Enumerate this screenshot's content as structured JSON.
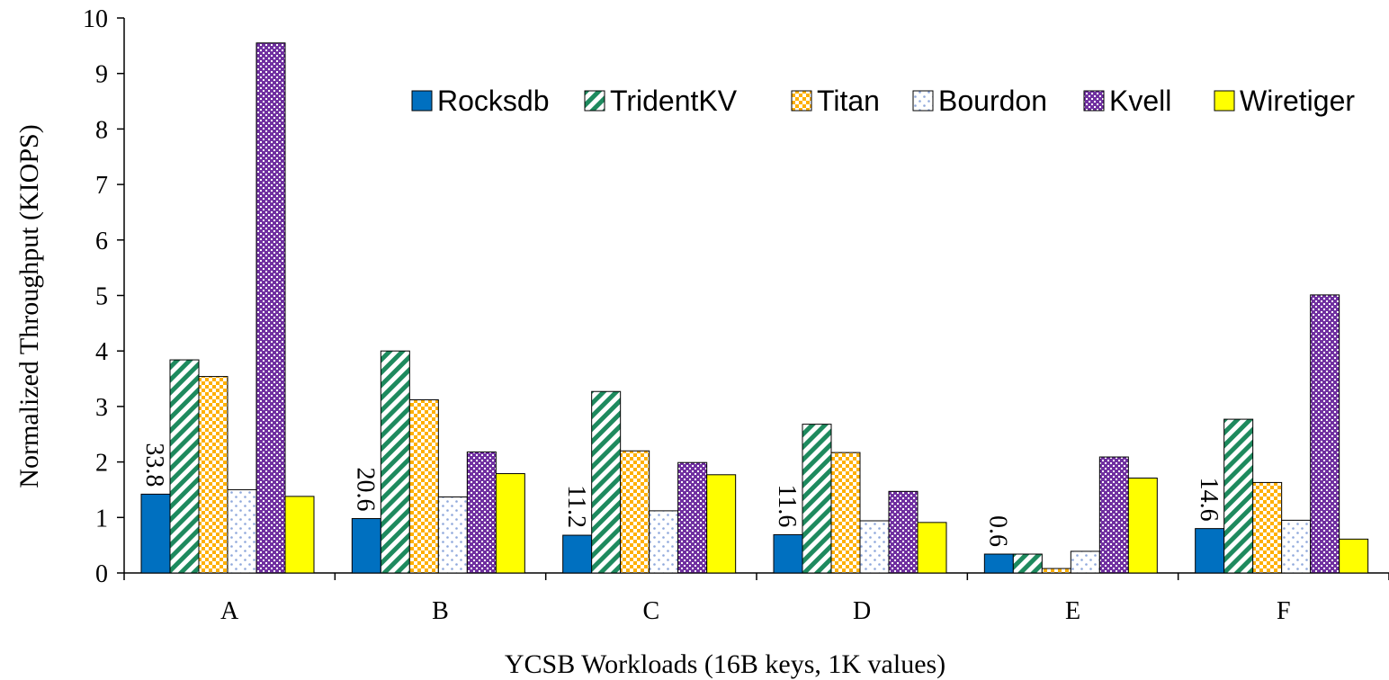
{
  "chart_data": {
    "type": "bar",
    "xlabel": "YCSB Workloads (16B keys, 1K values)",
    "ylabel": "Normalized Throughput (KIOPS)",
    "ylim": [
      0,
      10
    ],
    "yticks": [
      0,
      1,
      2,
      3,
      4,
      5,
      6,
      7,
      8,
      9,
      10
    ],
    "grid": false,
    "legend_position": "top-right",
    "categories": [
      "A",
      "B",
      "C",
      "D",
      "E",
      "F"
    ],
    "series": [
      {
        "name": "Rocksdb",
        "color": "#0070C0",
        "pattern": "solid",
        "values": [
          1.42,
          0.98,
          0.68,
          0.69,
          0.34,
          0.8
        ]
      },
      {
        "name": "TridentKV",
        "color": "#1E8A5E",
        "pattern": "diagonal-stripes",
        "values": [
          3.84,
          4.0,
          3.27,
          2.68,
          0.34,
          2.77
        ]
      },
      {
        "name": "Titan",
        "color": "#FFB000",
        "pattern": "checker",
        "values": [
          3.54,
          3.12,
          2.2,
          2.17,
          0.08,
          1.63
        ]
      },
      {
        "name": "Bourdon",
        "color": "#8FA8DC",
        "pattern": "sparse-dots",
        "values": [
          1.5,
          1.37,
          1.12,
          0.94,
          0.39,
          0.95
        ]
      },
      {
        "name": "Kvell",
        "color": "#7030A0",
        "pattern": "dense-dots",
        "values": [
          9.55,
          2.18,
          1.99,
          1.47,
          2.09,
          5.01
        ]
      },
      {
        "name": "Wiretiger",
        "color": "#FFFF00",
        "pattern": "solid",
        "values": [
          1.38,
          1.79,
          1.77,
          0.91,
          1.71,
          0.61
        ]
      }
    ],
    "annotations": [
      {
        "category": "A",
        "series": "Rocksdb",
        "text": "33.8"
      },
      {
        "category": "B",
        "series": "Rocksdb",
        "text": "20.6"
      },
      {
        "category": "C",
        "series": "Rocksdb",
        "text": "11.2"
      },
      {
        "category": "D",
        "series": "Rocksdb",
        "text": "11.6"
      },
      {
        "category": "E",
        "series": "Rocksdb",
        "text": "0.6"
      },
      {
        "category": "F",
        "series": "Rocksdb",
        "text": "14.6"
      }
    ]
  }
}
